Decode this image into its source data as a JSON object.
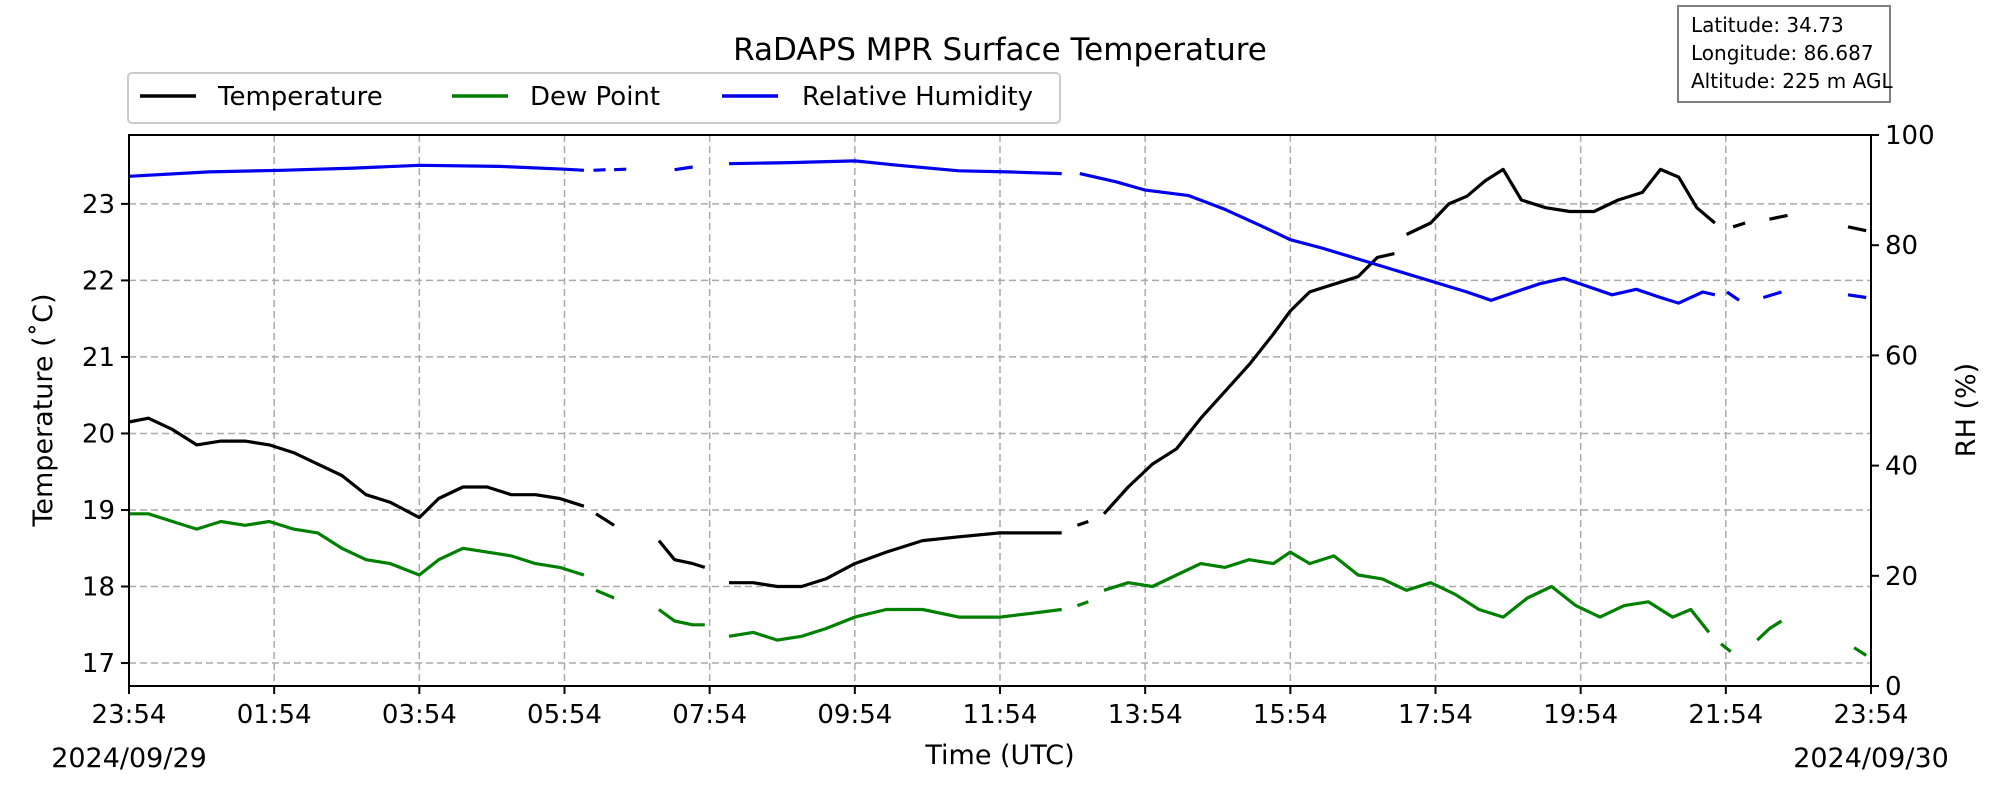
{
  "chart_data": {
    "type": "line",
    "title": "RaDAPS MPR Surface Temperature",
    "xlabel": "Time (UTC)",
    "ylabel": "Temperature ($^\\circ$C)",
    "y2label": "RH (%)",
    "start_date_label": "2024/09/29",
    "end_date_label": "2024/09/30",
    "x_ticks": [
      "23:54",
      "01:54",
      "03:54",
      "05:54",
      "07:54",
      "09:54",
      "11:54",
      "13:54",
      "15:54",
      "17:54",
      "19:54",
      "21:54",
      "23:54"
    ],
    "x_range": [
      "2024-09-29T23:54Z",
      "2024-09-30T23:54Z"
    ],
    "ylim": [
      16.7,
      23.9
    ],
    "y_ticks": [
      17,
      18,
      19,
      20,
      21,
      22,
      23
    ],
    "y2lim": [
      0,
      100
    ],
    "y2_ticks": [
      0,
      20,
      40,
      60,
      80,
      100
    ],
    "grid": true,
    "legend_placement": "top-left, above plot",
    "info_box": {
      "latitude": "Latitude: 34.73",
      "longitude": "Longitude: 86.687",
      "altitude": "Altitude: 225 m AGL"
    },
    "series": [
      {
        "name": "Temperature",
        "axis": "left",
        "color": "#000000",
        "segments": [
          [
            [
              "2024-09-29T23:54Z",
              20.15
            ],
            [
              "2024-09-30T00:10Z",
              20.2
            ],
            [
              "2024-09-30T00:30Z",
              20.05
            ],
            [
              "2024-09-30T00:50Z",
              19.85
            ],
            [
              "2024-09-30T01:10Z",
              19.9
            ],
            [
              "2024-09-30T01:30Z",
              19.9
            ],
            [
              "2024-09-30T01:50Z",
              19.85
            ],
            [
              "2024-09-30T02:10Z",
              19.75
            ],
            [
              "2024-09-30T02:30Z",
              19.6
            ],
            [
              "2024-09-30T02:50Z",
              19.45
            ],
            [
              "2024-09-30T03:10Z",
              19.2
            ],
            [
              "2024-09-30T03:30Z",
              19.1
            ],
            [
              "2024-09-30T03:54Z",
              18.9
            ],
            [
              "2024-09-30T04:10Z",
              19.15
            ],
            [
              "2024-09-30T04:30Z",
              19.3
            ],
            [
              "2024-09-30T04:50Z",
              19.3
            ],
            [
              "2024-09-30T05:10Z",
              19.2
            ],
            [
              "2024-09-30T05:30Z",
              19.2
            ],
            [
              "2024-09-30T05:50Z",
              19.15
            ],
            [
              "2024-09-30T06:10Z",
              19.05
            ]
          ],
          [
            [
              "2024-09-30T06:20Z",
              18.95
            ],
            [
              "2024-09-30T06:35Z",
              18.8
            ]
          ],
          [
            [
              "2024-09-30T07:12Z",
              18.6
            ],
            [
              "2024-09-30T07:25Z",
              18.35
            ],
            [
              "2024-09-30T07:40Z",
              18.3
            ],
            [
              "2024-09-30T07:50Z",
              18.25
            ]
          ],
          [
            [
              "2024-09-30T08:10Z",
              18.05
            ],
            [
              "2024-09-30T08:30Z",
              18.05
            ],
            [
              "2024-09-30T08:50Z",
              18.0
            ],
            [
              "2024-09-30T09:10Z",
              18.0
            ],
            [
              "2024-09-30T09:30Z",
              18.1
            ],
            [
              "2024-09-30T09:54Z",
              18.3
            ],
            [
              "2024-09-30T10:20Z",
              18.45
            ],
            [
              "2024-09-30T10:50Z",
              18.6
            ],
            [
              "2024-09-30T11:20Z",
              18.65
            ],
            [
              "2024-09-30T11:54Z",
              18.7
            ],
            [
              "2024-09-30T12:20Z",
              18.7
            ],
            [
              "2024-09-30T12:45Z",
              18.7
            ]
          ],
          [
            [
              "2024-09-30T12:58Z",
              18.8
            ],
            [
              "2024-09-30T13:07Z",
              18.85
            ]
          ],
          [
            [
              "2024-09-30T13:20Z",
              18.95
            ],
            [
              "2024-09-30T13:40Z",
              19.3
            ],
            [
              "2024-09-30T14:00Z",
              19.6
            ],
            [
              "2024-09-30T14:20Z",
              19.8
            ],
            [
              "2024-09-30T14:40Z",
              20.2
            ],
            [
              "2024-09-30T15:00Z",
              20.55
            ],
            [
              "2024-09-30T15:20Z",
              20.9
            ],
            [
              "2024-09-30T15:40Z",
              21.3
            ],
            [
              "2024-09-30T15:54Z",
              21.6
            ],
            [
              "2024-09-30T16:10Z",
              21.85
            ],
            [
              "2024-09-30T16:30Z",
              21.95
            ],
            [
              "2024-09-30T16:50Z",
              22.05
            ],
            [
              "2024-09-30T17:06Z",
              22.3
            ],
            [
              "2024-09-30T17:20Z",
              22.35
            ]
          ],
          [
            [
              "2024-09-30T17:30Z",
              22.6
            ],
            [
              "2024-09-30T17:50Z",
              22.75
            ],
            [
              "2024-09-30T18:05Z",
              23.0
            ],
            [
              "2024-09-30T18:20Z",
              23.1
            ],
            [
              "2024-09-30T18:35Z",
              23.3
            ],
            [
              "2024-09-30T18:50Z",
              23.45
            ],
            [
              "2024-09-30T19:05Z",
              23.05
            ],
            [
              "2024-09-30T19:25Z",
              22.95
            ],
            [
              "2024-09-30T19:45Z",
              22.9
            ],
            [
              "2024-09-30T20:05Z",
              22.9
            ],
            [
              "2024-09-30T20:25Z",
              23.05
            ],
            [
              "2024-09-30T20:45Z",
              23.15
            ],
            [
              "2024-09-30T21:00Z",
              23.45
            ],
            [
              "2024-09-30T21:15Z",
              23.35
            ],
            [
              "2024-09-30T21:30Z",
              22.95
            ],
            [
              "2024-09-30T21:45Z",
              22.75
            ]
          ],
          [
            [
              "2024-09-30T22:00Z",
              22.7
            ],
            [
              "2024-09-30T22:10Z",
              22.75
            ]
          ],
          [
            [
              "2024-09-30T22:30Z",
              22.8
            ],
            [
              "2024-09-30T22:45Z",
              22.85
            ]
          ],
          [
            [
              "2024-09-30T23:35Z",
              22.7
            ],
            [
              "2024-09-30T23:50Z",
              22.65
            ]
          ]
        ]
      },
      {
        "name": "Dew Point",
        "axis": "left",
        "color": "#008000",
        "segments": [
          [
            [
              "2024-09-29T23:54Z",
              18.95
            ],
            [
              "2024-09-30T00:10Z",
              18.95
            ],
            [
              "2024-09-30T00:30Z",
              18.85
            ],
            [
              "2024-09-30T00:50Z",
              18.75
            ],
            [
              "2024-09-30T01:10Z",
              18.85
            ],
            [
              "2024-09-30T01:30Z",
              18.8
            ],
            [
              "2024-09-30T01:50Z",
              18.85
            ],
            [
              "2024-09-30T02:10Z",
              18.75
            ],
            [
              "2024-09-30T02:30Z",
              18.7
            ],
            [
              "2024-09-30T02:50Z",
              18.5
            ],
            [
              "2024-09-30T03:10Z",
              18.35
            ],
            [
              "2024-09-30T03:30Z",
              18.3
            ],
            [
              "2024-09-30T03:54Z",
              18.15
            ],
            [
              "2024-09-30T04:10Z",
              18.35
            ],
            [
              "2024-09-30T04:30Z",
              18.5
            ],
            [
              "2024-09-30T04:50Z",
              18.45
            ],
            [
              "2024-09-30T05:10Z",
              18.4
            ],
            [
              "2024-09-30T05:30Z",
              18.3
            ],
            [
              "2024-09-30T05:50Z",
              18.25
            ],
            [
              "2024-09-30T06:10Z",
              18.15
            ]
          ],
          [
            [
              "2024-09-30T06:20Z",
              17.95
            ],
            [
              "2024-09-30T06:35Z",
              17.85
            ]
          ],
          [
            [
              "2024-09-30T07:12Z",
              17.7
            ],
            [
              "2024-09-30T07:25Z",
              17.55
            ],
            [
              "2024-09-30T07:40Z",
              17.5
            ],
            [
              "2024-09-30T07:50Z",
              17.5
            ]
          ],
          [
            [
              "2024-09-30T08:10Z",
              17.35
            ],
            [
              "2024-09-30T08:30Z",
              17.4
            ],
            [
              "2024-09-30T08:50Z",
              17.3
            ],
            [
              "2024-09-30T09:10Z",
              17.35
            ],
            [
              "2024-09-30T09:30Z",
              17.45
            ],
            [
              "2024-09-30T09:54Z",
              17.6
            ],
            [
              "2024-09-30T10:20Z",
              17.7
            ],
            [
              "2024-09-30T10:50Z",
              17.7
            ],
            [
              "2024-09-30T11:20Z",
              17.6
            ],
            [
              "2024-09-30T11:54Z",
              17.6
            ],
            [
              "2024-09-30T12:20Z",
              17.65
            ],
            [
              "2024-09-30T12:45Z",
              17.7
            ]
          ],
          [
            [
              "2024-09-30T12:58Z",
              17.75
            ],
            [
              "2024-09-30T13:07Z",
              17.8
            ]
          ],
          [
            [
              "2024-09-30T13:20Z",
              17.95
            ],
            [
              "2024-09-30T13:40Z",
              18.05
            ],
            [
              "2024-09-30T14:00Z",
              18.0
            ],
            [
              "2024-09-30T14:20Z",
              18.15
            ],
            [
              "2024-09-30T14:40Z",
              18.3
            ],
            [
              "2024-09-30T15:00Z",
              18.25
            ],
            [
              "2024-09-30T15:20Z",
              18.35
            ],
            [
              "2024-09-30T15:40Z",
              18.3
            ],
            [
              "2024-09-30T15:54Z",
              18.45
            ],
            [
              "2024-09-30T16:10Z",
              18.3
            ],
            [
              "2024-09-30T16:30Z",
              18.4
            ],
            [
              "2024-09-30T16:50Z",
              18.15
            ],
            [
              "2024-09-30T17:10Z",
              18.1
            ],
            [
              "2024-09-30T17:30Z",
              17.95
            ],
            [
              "2024-09-30T17:50Z",
              18.05
            ],
            [
              "2024-09-30T18:10Z",
              17.9
            ],
            [
              "2024-09-30T18:30Z",
              17.7
            ],
            [
              "2024-09-30T18:50Z",
              17.6
            ],
            [
              "2024-09-30T19:10Z",
              17.85
            ],
            [
              "2024-09-30T19:30Z",
              18.0
            ],
            [
              "2024-09-30T19:50Z",
              17.75
            ],
            [
              "2024-09-30T20:10Z",
              17.6
            ],
            [
              "2024-09-30T20:30Z",
              17.75
            ],
            [
              "2024-09-30T20:50Z",
              17.8
            ],
            [
              "2024-09-30T21:10Z",
              17.6
            ],
            [
              "2024-09-30T21:25Z",
              17.7
            ],
            [
              "2024-09-30T21:40Z",
              17.4
            ]
          ],
          [
            [
              "2024-09-30T21:50Z",
              17.25
            ],
            [
              "2024-09-30T21:58Z",
              17.15
            ]
          ],
          [
            [
              "2024-09-30T22:20Z",
              17.3
            ],
            [
              "2024-09-30T22:30Z",
              17.45
            ],
            [
              "2024-09-30T22:40Z",
              17.55
            ]
          ],
          [
            [
              "2024-09-30T23:40Z",
              17.2
            ],
            [
              "2024-09-30T23:50Z",
              17.1
            ]
          ]
        ]
      },
      {
        "name": "Relative Humidity",
        "axis": "right",
        "color": "#0000ee",
        "segments": [
          [
            [
              "2024-09-29T23:54Z",
              92.5
            ],
            [
              "2024-09-30T01:00Z",
              93.3
            ],
            [
              "2024-09-30T02:00Z",
              93.6
            ],
            [
              "2024-09-30T03:00Z",
              94.0
            ],
            [
              "2024-09-30T03:54Z",
              94.5
            ],
            [
              "2024-09-30T05:00Z",
              94.3
            ],
            [
              "2024-09-30T05:54Z",
              93.8
            ],
            [
              "2024-09-30T06:10Z",
              93.6
            ]
          ],
          [
            [
              "2024-09-30T06:18Z",
              93.6
            ],
            [
              "2024-09-30T06:28Z",
              93.7
            ]
          ],
          [
            [
              "2024-09-30T06:35Z",
              93.7
            ],
            [
              "2024-09-30T06:45Z",
              93.8
            ]
          ],
          [
            [
              "2024-09-30T07:25Z",
              93.7
            ],
            [
              "2024-09-30T07:40Z",
              94.2
            ]
          ],
          [
            [
              "2024-09-30T08:10Z",
              94.8
            ],
            [
              "2024-09-30T09:00Z",
              95.0
            ],
            [
              "2024-09-30T09:54Z",
              95.3
            ],
            [
              "2024-09-30T10:30Z",
              94.5
            ],
            [
              "2024-09-30T11:20Z",
              93.5
            ],
            [
              "2024-09-30T12:00Z",
              93.3
            ],
            [
              "2024-09-30T12:45Z",
              93.0
            ]
          ],
          [
            [
              "2024-09-30T13:00Z",
              93.0
            ],
            [
              "2024-09-30T13:30Z",
              91.5
            ],
            [
              "2024-09-30T13:54Z",
              90.0
            ],
            [
              "2024-09-30T14:30Z",
              89.0
            ],
            [
              "2024-09-30T15:00Z",
              86.5
            ],
            [
              "2024-09-30T15:30Z",
              83.5
            ],
            [
              "2024-09-30T15:54Z",
              81.0
            ],
            [
              "2024-09-30T16:20Z",
              79.5
            ],
            [
              "2024-09-30T16:50Z",
              77.5
            ],
            [
              "2024-09-30T17:20Z",
              75.5
            ],
            [
              "2024-09-30T17:50Z",
              73.5
            ],
            [
              "2024-09-30T18:20Z",
              71.5
            ],
            [
              "2024-09-30T18:40Z",
              70.0
            ],
            [
              "2024-09-30T19:00Z",
              71.5
            ],
            [
              "2024-09-30T19:20Z",
              73.0
            ],
            [
              "2024-09-30T19:40Z",
              74.0
            ],
            [
              "2024-09-30T20:00Z",
              72.5
            ],
            [
              "2024-09-30T20:20Z",
              71.0
            ],
            [
              "2024-09-30T20:40Z",
              72.0
            ],
            [
              "2024-09-30T21:00Z",
              70.5
            ],
            [
              "2024-09-30T21:15Z",
              69.5
            ],
            [
              "2024-09-30T21:35Z",
              71.5
            ],
            [
              "2024-09-30T21:45Z",
              71.0
            ]
          ],
          [
            [
              "2024-09-30T21:55Z",
              71.5
            ],
            [
              "2024-09-30T22:05Z",
              70.0
            ]
          ],
          [
            [
              "2024-09-30T22:25Z",
              70.5
            ],
            [
              "2024-09-30T22:40Z",
              71.5
            ]
          ],
          [
            [
              "2024-09-30T23:35Z",
              71.0
            ],
            [
              "2024-09-30T23:50Z",
              70.5
            ]
          ]
        ]
      }
    ]
  }
}
